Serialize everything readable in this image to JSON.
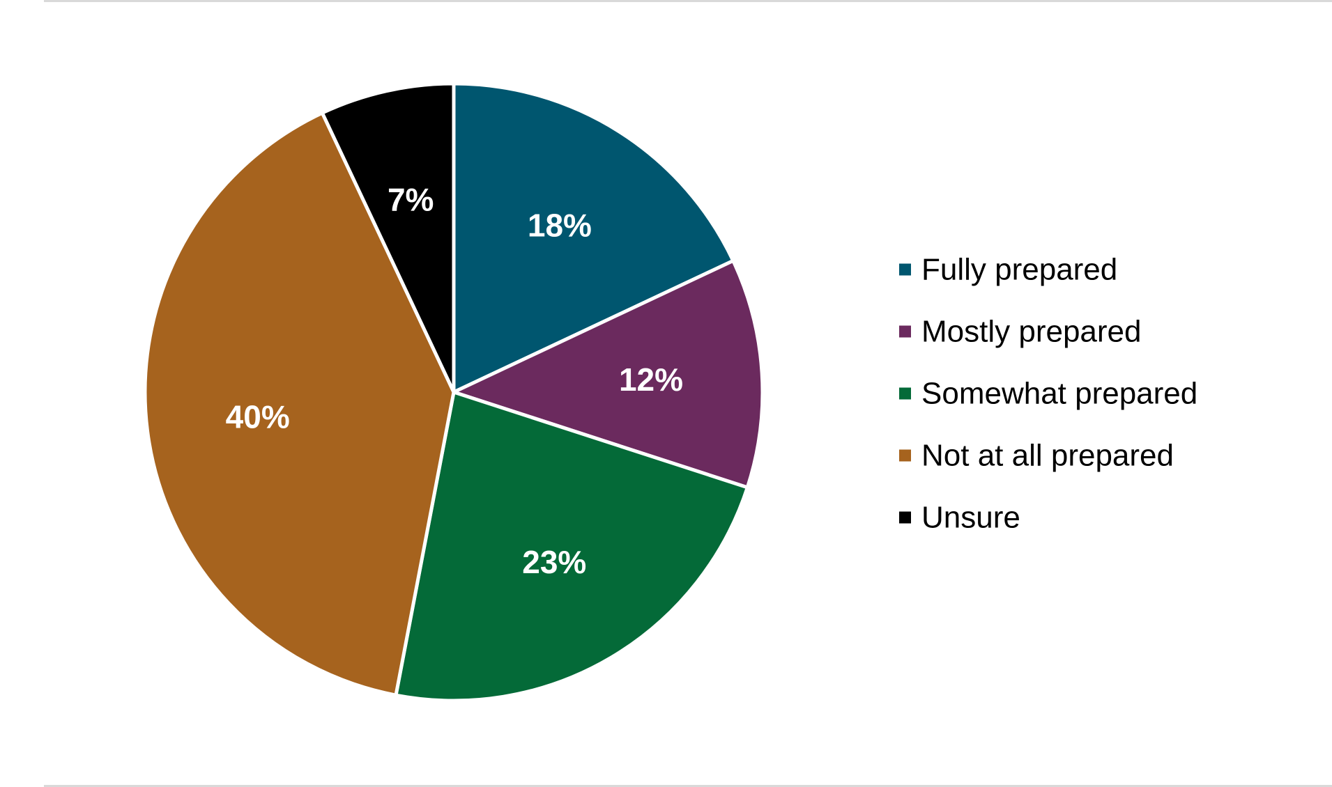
{
  "chart_data": {
    "type": "pie",
    "title": "",
    "legend_position": "right",
    "slices": [
      {
        "label": "Fully prepared",
        "value": 18,
        "display": "18%",
        "color": "#00566f"
      },
      {
        "label": "Mostly prepared",
        "value": 12,
        "display": "12%",
        "color": "#6b2a5e"
      },
      {
        "label": "Somewhat prepared",
        "value": 23,
        "display": "23%",
        "color": "#046a38"
      },
      {
        "label": "Not at all prepared",
        "value": 40,
        "display": "40%",
        "color": "#a6631e"
      },
      {
        "label": "Unsure",
        "value": 7,
        "display": "7%",
        "color": "#000000"
      }
    ]
  }
}
